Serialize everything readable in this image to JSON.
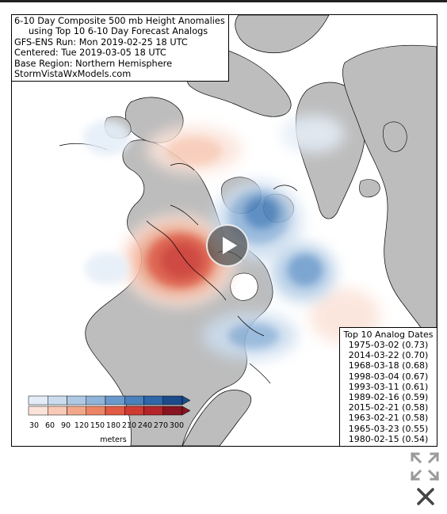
{
  "title_lines": [
    "6-10 Day Composite 500 mb Height Anomalies",
    "using Top 10 6-10 Day Forecast Analogs",
    "GFS-ENS Run: Mon 2019-02-25 18 UTC",
    "Centered: Tue 2019-03-05 18 UTC",
    "Base Region: Northern Hemisphere",
    "StormVistaWxModels.com"
  ],
  "analogs": {
    "heading": "Top 10 Analog Dates",
    "dates": [
      "1975-03-02 (0.73)",
      "2014-03-22 (0.70)",
      "1968-03-18 (0.68)",
      "1998-03-04 (0.67)",
      "1993-03-11 (0.61)",
      "1989-02-16 (0.59)",
      "2015-02-21 (0.58)",
      "1963-02-21 (0.58)",
      "1965-03-23 (0.55)",
      "1980-02-15 (0.54)"
    ]
  },
  "colorbar": {
    "ticks": [
      "30",
      "60",
      "90",
      "120",
      "150",
      "180",
      "210",
      "240",
      "270",
      "300"
    ],
    "unit": "meters",
    "negative_colors": [
      "#e4edf7",
      "#cbdcee",
      "#afc9e4",
      "#8fb3d9",
      "#6a9acb",
      "#4a80bb",
      "#2f66a8",
      "#1c4a8a"
    ],
    "positive_colors": [
      "#fbe3d9",
      "#f8c9b5",
      "#f3a78a",
      "#ec8565",
      "#e25a45",
      "#d13a33",
      "#b42428",
      "#871420"
    ]
  },
  "colors": {
    "land": "#bdbdbd",
    "ocean": "#ffffff",
    "coast": "#000000"
  },
  "controls": {
    "play": "play-icon",
    "expand": "expand-arrows-icon",
    "close": "close-x-icon"
  }
}
